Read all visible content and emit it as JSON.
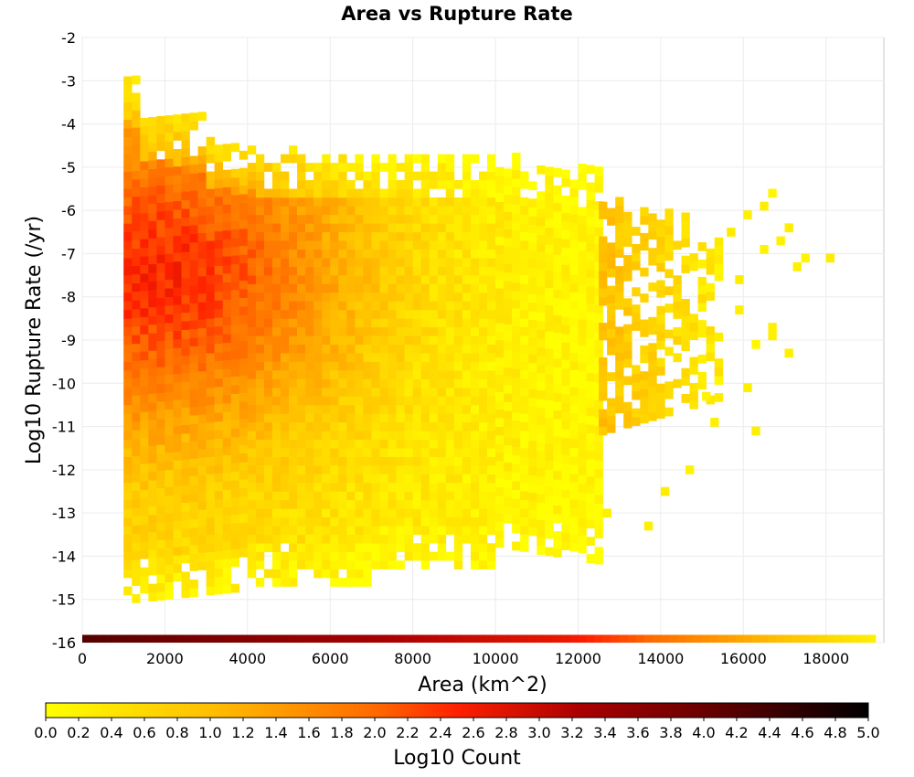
{
  "chart_data": {
    "type": "heatmap",
    "title": "Area vs Rupture Rate",
    "xlabel": "Area (km^2)",
    "ylabel": "Log10 Rupture Rate (/yr)",
    "xlim": [
      0,
      19400
    ],
    "ylim": [
      -16,
      -2
    ],
    "x_ticks": [
      0,
      2000,
      4000,
      6000,
      8000,
      10000,
      12000,
      14000,
      16000,
      18000
    ],
    "x_tick_labels": [
      "0",
      "2000",
      "4000",
      "6000",
      "8000",
      "10000",
      "12000",
      "14000",
      "16000",
      "18000"
    ],
    "y_ticks": [
      -2,
      -3,
      -4,
      -5,
      -6,
      -7,
      -8,
      -9,
      -10,
      -11,
      -12,
      -13,
      -14,
      -15,
      -16
    ],
    "y_tick_labels": [
      "-2",
      "-3",
      "-4",
      "-5",
      "-6",
      "-7",
      "-8",
      "-9",
      "-10",
      "-11",
      "-12",
      "-13",
      "-14",
      "-15",
      "-16"
    ],
    "grid": true,
    "bin_size": {
      "x": 200,
      "y": 0.2
    },
    "density_model": {
      "main_body": {
        "x_min": 1000,
        "x_max": 12500,
        "peak_x": 2000,
        "peak_y": -7.5,
        "peak_log10_count": 1.95
      },
      "secondary_body": {
        "x_min": 12500,
        "x_max": 15400,
        "y_min": -11.2,
        "y_max": -5.8,
        "log10_count": 0.95
      }
    },
    "bottom_row": {
      "y": -16,
      "x_range": [
        0,
        19200
      ],
      "log10_count_start": 4.2,
      "log10_count_end": 0.2
    },
    "colorbar": {
      "label": "Log10 Count",
      "range": [
        0.0,
        5.0
      ],
      "ticks": [
        "0.0",
        "0.2",
        "0.4",
        "0.6",
        "0.8",
        "1.0",
        "1.2",
        "1.4",
        "1.6",
        "1.8",
        "2.0",
        "2.2",
        "2.4",
        "2.6",
        "2.8",
        "3.0",
        "3.2",
        "3.4",
        "3.6",
        "3.8",
        "4.0",
        "4.2",
        "4.4",
        "4.6",
        "4.8",
        "5.0"
      ],
      "colors": [
        "#ffff00",
        "#ffa500",
        "#ff3300",
        "#aa0000",
        "#000000"
      ]
    }
  }
}
